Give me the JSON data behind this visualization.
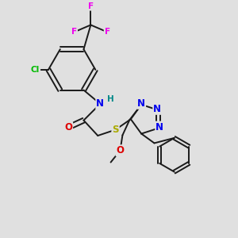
{
  "bg_color": "#e0e0e0",
  "bond_color": "#1a1a1a",
  "bond_width": 1.4,
  "atom_colors": {
    "N": "#0000ee",
    "O": "#dd0000",
    "S": "#aaaa00",
    "Cl": "#00bb00",
    "F": "#ee00ee",
    "H": "#008888",
    "C": "#1a1a1a"
  },
  "font_size": 7.5
}
